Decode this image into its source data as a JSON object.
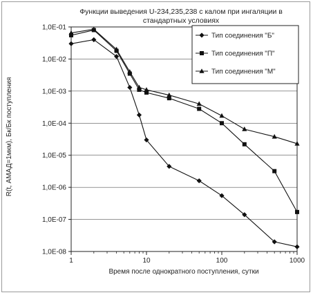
{
  "chart_data": {
    "type": "line",
    "title_line1": "Функции выведения U-234,235,238 с калом при ингаляции в",
    "title_line2": "стандартных условиях",
    "xlabel": "Время после однократного поступления, сутки",
    "ylabel": "R(t, АМАД=1мкм), Бк/Бк поступления",
    "x_scale": "log",
    "y_scale": "log",
    "xlim": [
      1,
      1000
    ],
    "ylim": [
      1e-08,
      0.1
    ],
    "x_ticks": [
      "1",
      "10",
      "100",
      "1000"
    ],
    "y_ticks": [
      "1,0E-01",
      "1,0E-02",
      "1,0E-03",
      "1,0E-04",
      "1,0E-05",
      "1,0E-06",
      "1,0E-07",
      "1,0E-08"
    ],
    "grid": "horizontal",
    "legend_position": "top-right",
    "series": [
      {
        "name": "Тип соединения  \"Б\"",
        "marker": "diamond",
        "x": [
          1,
          2,
          4,
          6,
          8,
          10,
          20,
          50,
          100,
          200,
          500,
          1000
        ],
        "y": [
          0.03,
          0.04,
          0.012,
          0.0013,
          0.00018,
          3e-05,
          4.5e-06,
          1.6e-06,
          5.5e-07,
          1.4e-07,
          2e-08,
          1.4e-08
        ]
      },
      {
        "name": "Тип соединения  \"П\"",
        "marker": "square",
        "x": [
          1,
          2,
          4,
          6,
          8,
          10,
          20,
          50,
          100,
          200,
          500,
          1000
        ],
        "y": [
          0.055,
          0.08,
          0.018,
          0.0035,
          0.0011,
          0.0009,
          0.0006,
          0.00028,
          0.0001,
          2.2e-05,
          3.2e-06,
          1.7e-07
        ]
      },
      {
        "name": "Тип соединения  \"М\"",
        "marker": "triangle",
        "x": [
          1,
          2,
          4,
          6,
          8,
          10,
          20,
          50,
          100,
          200,
          500,
          1000
        ],
        "y": [
          0.065,
          0.085,
          0.02,
          0.004,
          0.0013,
          0.0011,
          0.00075,
          0.0004,
          0.00017,
          6.5e-05,
          3.8e-05,
          2.3e-05
        ]
      }
    ]
  }
}
